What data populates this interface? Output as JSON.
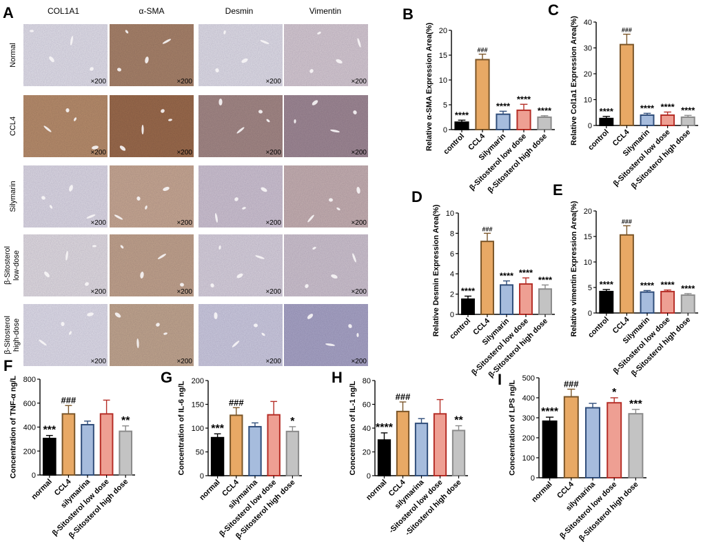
{
  "panel_a": {
    "letter": "A",
    "columns": [
      "COL1A1",
      "α-SMA",
      "Desmin",
      "Vimentin"
    ],
    "rows": [
      {
        "label": [
          "Normal"
        ]
      },
      {
        "label": [
          "CCL4"
        ]
      },
      {
        "label": [
          "Silymarin"
        ]
      },
      {
        "label": [
          "β-Sitosterol",
          "low-dose"
        ]
      },
      {
        "label": [
          "β-Sitosterol",
          "high-dose"
        ]
      }
    ],
    "magnification": "×200",
    "colors": {
      "COL1A1": [
        "#e3e2ea",
        "#b98f6c",
        "#dedbe5",
        "#e2dee2",
        "#e1e0ea"
      ],
      "α-SMA": [
        "#a9846a",
        "#9c6c4c",
        "#c9aa94",
        "#c3a58e",
        "#c3a890"
      ],
      "Desmin": [
        "#e1e0e8",
        "#a58a86",
        "#cfc5d2",
        "#d9d3dd",
        "#cecde0"
      ],
      "Vimentin": [
        "#d7ccd3",
        "#a08a95",
        "#c7b2b2",
        "#cfc5cf",
        "#a9a6c6"
      ]
    }
  },
  "chart_data": [
    {
      "letter": "B",
      "type": "bar",
      "ylabel": "Relative α-SMA Expression Area(%)",
      "categories": [
        "control",
        "CCL4",
        "Silymarin",
        "β-Sitosterol low dose",
        "β-Sitosterol high dose"
      ],
      "values": [
        1.5,
        14.1,
        3.1,
        3.9,
        2.5
      ],
      "errors": [
        0.4,
        1.1,
        0.6,
        1.2,
        0.3
      ],
      "annotations": [
        "****",
        "###",
        "****",
        "****",
        "****"
      ],
      "ylim": [
        0,
        20
      ],
      "yticks": [
        0,
        5,
        10,
        15,
        20
      ]
    },
    {
      "letter": "C",
      "type": "bar",
      "ylabel": "Relative Col1a1 Expression Area(%)",
      "categories": [
        "control",
        "CCL4",
        "Silymarin",
        "β-Sitosterol low dose",
        "β-Sitosterol high dose"
      ],
      "values": [
        2.7,
        31.3,
        4.0,
        4.0,
        3.2
      ],
      "errors": [
        0.8,
        4.0,
        0.7,
        1.2,
        0.7
      ],
      "annotations": [
        "****",
        "###",
        "****",
        "****",
        "****"
      ],
      "ylim": [
        0,
        40
      ],
      "yticks": [
        0,
        10,
        20,
        30,
        40
      ]
    },
    {
      "letter": "D",
      "type": "bar",
      "ylabel": "Relative Desmin Expression Area(%)",
      "categories": [
        "control",
        "CCL4",
        "Silymarin",
        "β-Sitosterol low dose",
        "β-Sitosterol high dose"
      ],
      "values": [
        1.5,
        7.2,
        2.9,
        3.0,
        2.5
      ],
      "errors": [
        0.3,
        0.8,
        0.4,
        0.6,
        0.4
      ],
      "annotations": [
        "****",
        "###",
        "****",
        "****",
        "****"
      ],
      "ylim": [
        0,
        10
      ],
      "yticks": [
        0,
        2,
        4,
        6,
        8,
        10
      ]
    },
    {
      "letter": "E",
      "type": "bar",
      "ylabel": "Relative vimentin Expression Area(%)",
      "categories": [
        "control",
        "CCL4",
        "Silymarin",
        "β-Sitosterol low dose",
        "β-Sitosterol high dose"
      ],
      "values": [
        4.2,
        15.3,
        4.1,
        4.2,
        3.5
      ],
      "errors": [
        0.4,
        1.8,
        0.3,
        0.3,
        0.3
      ],
      "annotations": [
        "****",
        "###",
        "****",
        "****",
        "****"
      ],
      "ylim": [
        0,
        20
      ],
      "yticks": [
        0,
        5,
        10,
        15,
        20
      ]
    },
    {
      "letter": "F",
      "type": "bar",
      "ylabel": "Concentration of TNF-α ng/L",
      "categories": [
        "normal",
        "CCL4",
        "silymarina",
        "β-Sitosterol low dose",
        "β-Sitosterol high dose"
      ],
      "values": [
        305,
        510,
        420,
        510,
        365
      ],
      "errors": [
        25,
        70,
        30,
        115,
        45
      ],
      "annotations": [
        "***",
        "###",
        "",
        "",
        "**"
      ],
      "ylim": [
        0,
        800
      ],
      "yticks": [
        0,
        200,
        400,
        600,
        800
      ]
    },
    {
      "letter": "G",
      "type": "bar",
      "ylabel": "Concentration of IL-6 ng/L",
      "categories": [
        "normal",
        "CCL4",
        "silymarina",
        "β-Sitosterol low dose",
        "β-Sitosterol high dose"
      ],
      "values": [
        80,
        127,
        103,
        128,
        93
      ],
      "errors": [
        8,
        16,
        8,
        28,
        10
      ],
      "annotations": [
        "***",
        "###",
        "",
        "",
        "*"
      ],
      "ylim": [
        0,
        200
      ],
      "yticks": [
        0,
        50,
        100,
        150,
        200
      ]
    },
    {
      "letter": "H",
      "type": "bar",
      "ylabel": "Concentration of IL-1 ng/L",
      "categories": [
        "normal",
        "CCL4",
        "silymarina",
        "-Sitosterol low dose",
        "-Sitosterol high dose"
      ],
      "values": [
        30,
        54,
        44,
        52,
        38
      ],
      "errors": [
        6,
        8,
        4,
        12,
        4
      ],
      "annotations": [
        "****",
        "###",
        "",
        "",
        "**"
      ],
      "ylim": [
        0,
        80
      ],
      "yticks": [
        0,
        20,
        40,
        60,
        80
      ]
    },
    {
      "letter": "I",
      "type": "bar",
      "ylabel": "Concentration of LPS ng/L",
      "categories": [
        "normal",
        "CCL4",
        "silymarina",
        "β-Sitosterol low dose",
        "β-Sitosterol high dose"
      ],
      "values": [
        283,
        405,
        350,
        375,
        320
      ],
      "errors": [
        20,
        38,
        22,
        25,
        22
      ],
      "annotations": [
        "****",
        "###",
        "",
        "*",
        "***"
      ],
      "ylim": [
        0,
        500
      ],
      "yticks": [
        0,
        100,
        200,
        300,
        400,
        500
      ]
    }
  ],
  "bar_style": {
    "fills": [
      "#000000",
      "#e8a965",
      "#a6bcdd",
      "#ee9f93",
      "#c3c3c3"
    ],
    "strokes": [
      "#000000",
      "#7a5528",
      "#2f4d7a",
      "#b52d26",
      "#8a8a8a"
    ]
  }
}
